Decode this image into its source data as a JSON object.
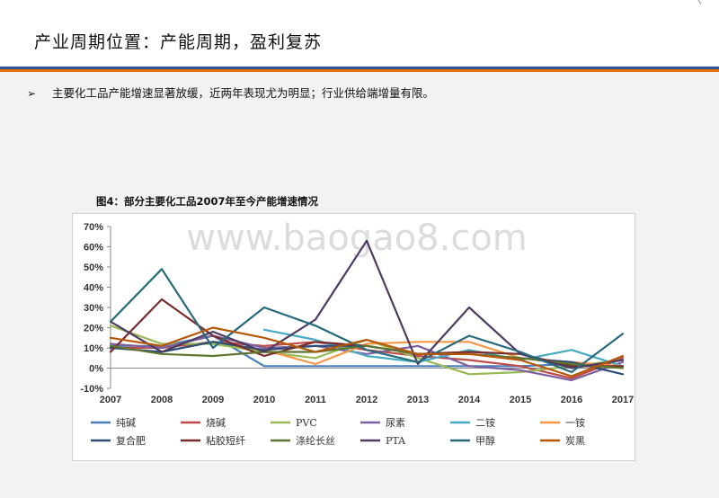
{
  "page": {
    "title": "产业周期位置：产能周期，盈利复苏",
    "bullet_marker": "➢",
    "bullet_text": "主要化工品产能增速显著放缓，近两年表现尤为明显；行业供给端增量有限。",
    "figure_title": "图4：部分主要化工品2007年至今产能增速情况",
    "watermark": "www.baogao8.com",
    "stripe_colors": [
      "#2f5597",
      "#e46c0a"
    ]
  },
  "chart_data": {
    "type": "line",
    "title": "",
    "xlabel": "",
    "ylabel": "",
    "ylim": [
      -10,
      70
    ],
    "yticks": [
      -10,
      0,
      10,
      20,
      30,
      40,
      50,
      60,
      70
    ],
    "ytick_labels": [
      "-10%",
      "0%",
      "10%",
      "20%",
      "30%",
      "40%",
      "50%",
      "60%",
      "70%"
    ],
    "categories": [
      "2007",
      "2008",
      "2009",
      "2010",
      "2011",
      "2012",
      "2013",
      "2014",
      "2015",
      "2016",
      "2017"
    ],
    "grid": false,
    "legend_position": "bottom",
    "series": [
      {
        "name": "纯碱",
        "color": "#4a7ebb",
        "values": [
          11,
          11,
          16,
          1,
          1,
          1,
          1,
          1,
          1,
          2,
          1
        ]
      },
      {
        "name": "烧碱",
        "color": "#be4b48",
        "values": [
          10,
          10,
          13,
          11,
          13,
          9,
          6,
          4,
          1,
          -5,
          5
        ]
      },
      {
        "name": "PVC",
        "color": "#98b954",
        "values": [
          21,
          12,
          12,
          8,
          5,
          14,
          5,
          -3,
          -2,
          1,
          4
        ]
      },
      {
        "name": "尿素",
        "color": "#7d60a0",
        "values": [
          12,
          10,
          16,
          10,
          11,
          7,
          11,
          1,
          -1,
          -6,
          3
        ]
      },
      {
        "name": "二铵",
        "color": "#46aac5",
        "values": [
          null,
          null,
          null,
          19,
          14,
          6,
          3,
          9,
          4,
          9,
          1
        ]
      },
      {
        "name": "一铵",
        "color": "#f79646",
        "values": [
          null,
          null,
          null,
          9,
          2,
          12,
          13,
          13,
          5,
          3,
          1
        ]
      },
      {
        "name": "复合肥",
        "color": "#2c4d75",
        "values": [
          10,
          8,
          13,
          9,
          11,
          11,
          7,
          7,
          5,
          3,
          -3
        ]
      },
      {
        "name": "粘胶短纤",
        "color": "#772c2a",
        "values": [
          8,
          34,
          16,
          6,
          13,
          11,
          7,
          8,
          7,
          1,
          1
        ]
      },
      {
        "name": "涤纶长丝",
        "color": "#5f7530",
        "values": [
          11,
          7,
          6,
          8,
          8,
          11,
          7,
          7,
          5,
          2,
          0
        ]
      },
      {
        "name": "PTA",
        "color": "#4d3b62",
        "values": [
          23,
          8,
          18,
          8,
          24,
          63,
          2,
          30,
          7,
          0,
          4
        ]
      },
      {
        "name": "甲醇",
        "color": "#276a7c",
        "values": [
          23,
          49,
          10,
          30,
          21,
          9,
          3,
          16,
          8,
          -2,
          17
        ]
      },
      {
        "name": "炭黑",
        "color": "#b65708",
        "values": [
          15,
          11,
          20,
          15,
          8,
          14,
          7,
          7,
          4,
          -4,
          6
        ]
      }
    ]
  }
}
